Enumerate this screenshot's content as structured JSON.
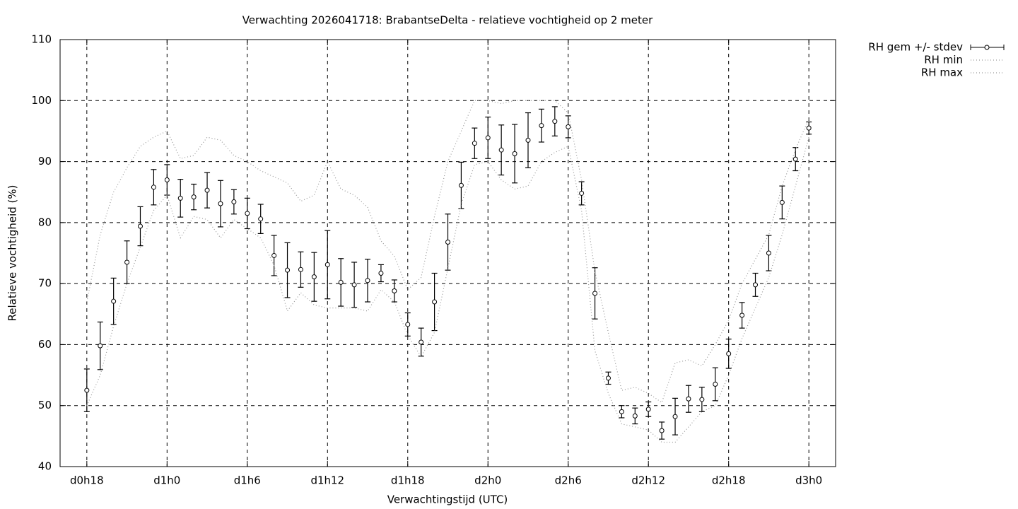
{
  "chart_data": {
    "type": "errorbar",
    "title": "Verwachting 2026041718: BrabantseDelta - relatieve vochtigheid op 2 meter",
    "xlabel": "Verwachtingstijd (UTC)",
    "ylabel": "Relatieve vochtigheid (%)",
    "x": [
      18,
      19,
      20,
      21,
      22,
      23,
      24,
      25,
      26,
      27,
      28,
      29,
      30,
      31,
      32,
      33,
      34,
      35,
      36,
      37,
      38,
      39,
      40,
      41,
      42,
      43,
      44,
      45,
      46,
      47,
      48,
      49,
      50,
      51,
      52,
      53,
      54,
      55,
      56,
      57,
      58,
      59,
      60,
      61,
      62,
      63,
      64,
      65,
      66,
      67,
      68,
      69,
      70,
      71,
      72
    ],
    "series": [
      {
        "name": "RH gem +/- stdev",
        "color": "#000000",
        "values": [
          52.5,
          59.8,
          67.1,
          73.5,
          79.4,
          85.8,
          87.0,
          84.0,
          84.2,
          85.3,
          83.1,
          83.4,
          81.5,
          80.6,
          74.6,
          72.2,
          72.3,
          71.1,
          73.1,
          70.2,
          69.8,
          70.5,
          71.7,
          68.8,
          63.3,
          60.4,
          67.0,
          76.8,
          86.1,
          93.0,
          93.9,
          91.9,
          91.3,
          93.5,
          95.9,
          96.6,
          95.7,
          84.8,
          68.4,
          54.5,
          49.0,
          48.3,
          49.4,
          45.9,
          48.2,
          51.1,
          51.0,
          53.5,
          58.5,
          64.8,
          69.8,
          75.0,
          83.3,
          90.4,
          95.5
        ],
        "errors": [
          3.5,
          3.9,
          3.8,
          3.5,
          3.2,
          2.9,
          2.5,
          3.1,
          2.1,
          2.9,
          3.8,
          2.0,
          2.5,
          2.4,
          3.3,
          4.5,
          2.9,
          4.0,
          5.6,
          3.9,
          3.7,
          3.5,
          1.4,
          1.8,
          1.9,
          2.3,
          4.7,
          4.6,
          3.8,
          2.5,
          3.4,
          4.1,
          4.8,
          4.5,
          2.7,
          2.4,
          1.8,
          1.9,
          4.2,
          1.0,
          1.0,
          1.3,
          1.2,
          1.4,
          3.0,
          2.2,
          2.0,
          2.7,
          2.4,
          2.1,
          1.9,
          2.9,
          2.7,
          1.9,
          1.0
        ]
      },
      {
        "name": "RH min",
        "color": "#999999",
        "values": [
          50,
          55,
          63,
          70,
          76,
          82,
          84.5,
          77.5,
          81,
          80.5,
          77.5,
          80.5,
          79,
          77.5,
          73,
          65.5,
          68.5,
          66.5,
          66,
          66,
          66,
          65.5,
          69,
          67,
          61.5,
          58,
          62,
          72.5,
          83,
          89.5,
          90,
          87,
          85.5,
          86,
          90,
          91.5,
          92.5,
          82,
          59,
          52,
          47,
          46.5,
          46,
          44,
          44,
          46.5,
          49,
          50,
          55,
          61,
          66,
          71,
          78,
          86,
          94
        ]
      },
      {
        "name": "RH max",
        "color": "#999999",
        "values": [
          67,
          78,
          85,
          89,
          92.5,
          94,
          95,
          90.5,
          91,
          94,
          93.5,
          91,
          90,
          88.5,
          87.5,
          86.5,
          83.5,
          84.5,
          90,
          85.5,
          84.5,
          82.5,
          77,
          74.5,
          69,
          71,
          81,
          90,
          95,
          100,
          100,
          99.5,
          100,
          100,
          100,
          100,
          98,
          87,
          72,
          62,
          52.5,
          53,
          52,
          50.5,
          57,
          57.5,
          56.5,
          60,
          64,
          70,
          74,
          78,
          86,
          92,
          97
        ]
      }
    ],
    "xlim": [
      16,
      74
    ],
    "xticks": [
      {
        "value": 18,
        "label": "d0h18"
      },
      {
        "value": 24,
        "label": "d1h0"
      },
      {
        "value": 30,
        "label": "d1h6"
      },
      {
        "value": 36,
        "label": "d1h12"
      },
      {
        "value": 42,
        "label": "d1h18"
      },
      {
        "value": 48,
        "label": "d2h0"
      },
      {
        "value": 54,
        "label": "d2h6"
      },
      {
        "value": 60,
        "label": "d2h12"
      },
      {
        "value": 66,
        "label": "d2h18"
      },
      {
        "value": 72,
        "label": "d3h0"
      }
    ],
    "ylim": [
      40,
      110
    ],
    "yticks": [
      40,
      50,
      60,
      70,
      80,
      90,
      100,
      110
    ],
    "grid": true,
    "legend": "outside-right"
  }
}
